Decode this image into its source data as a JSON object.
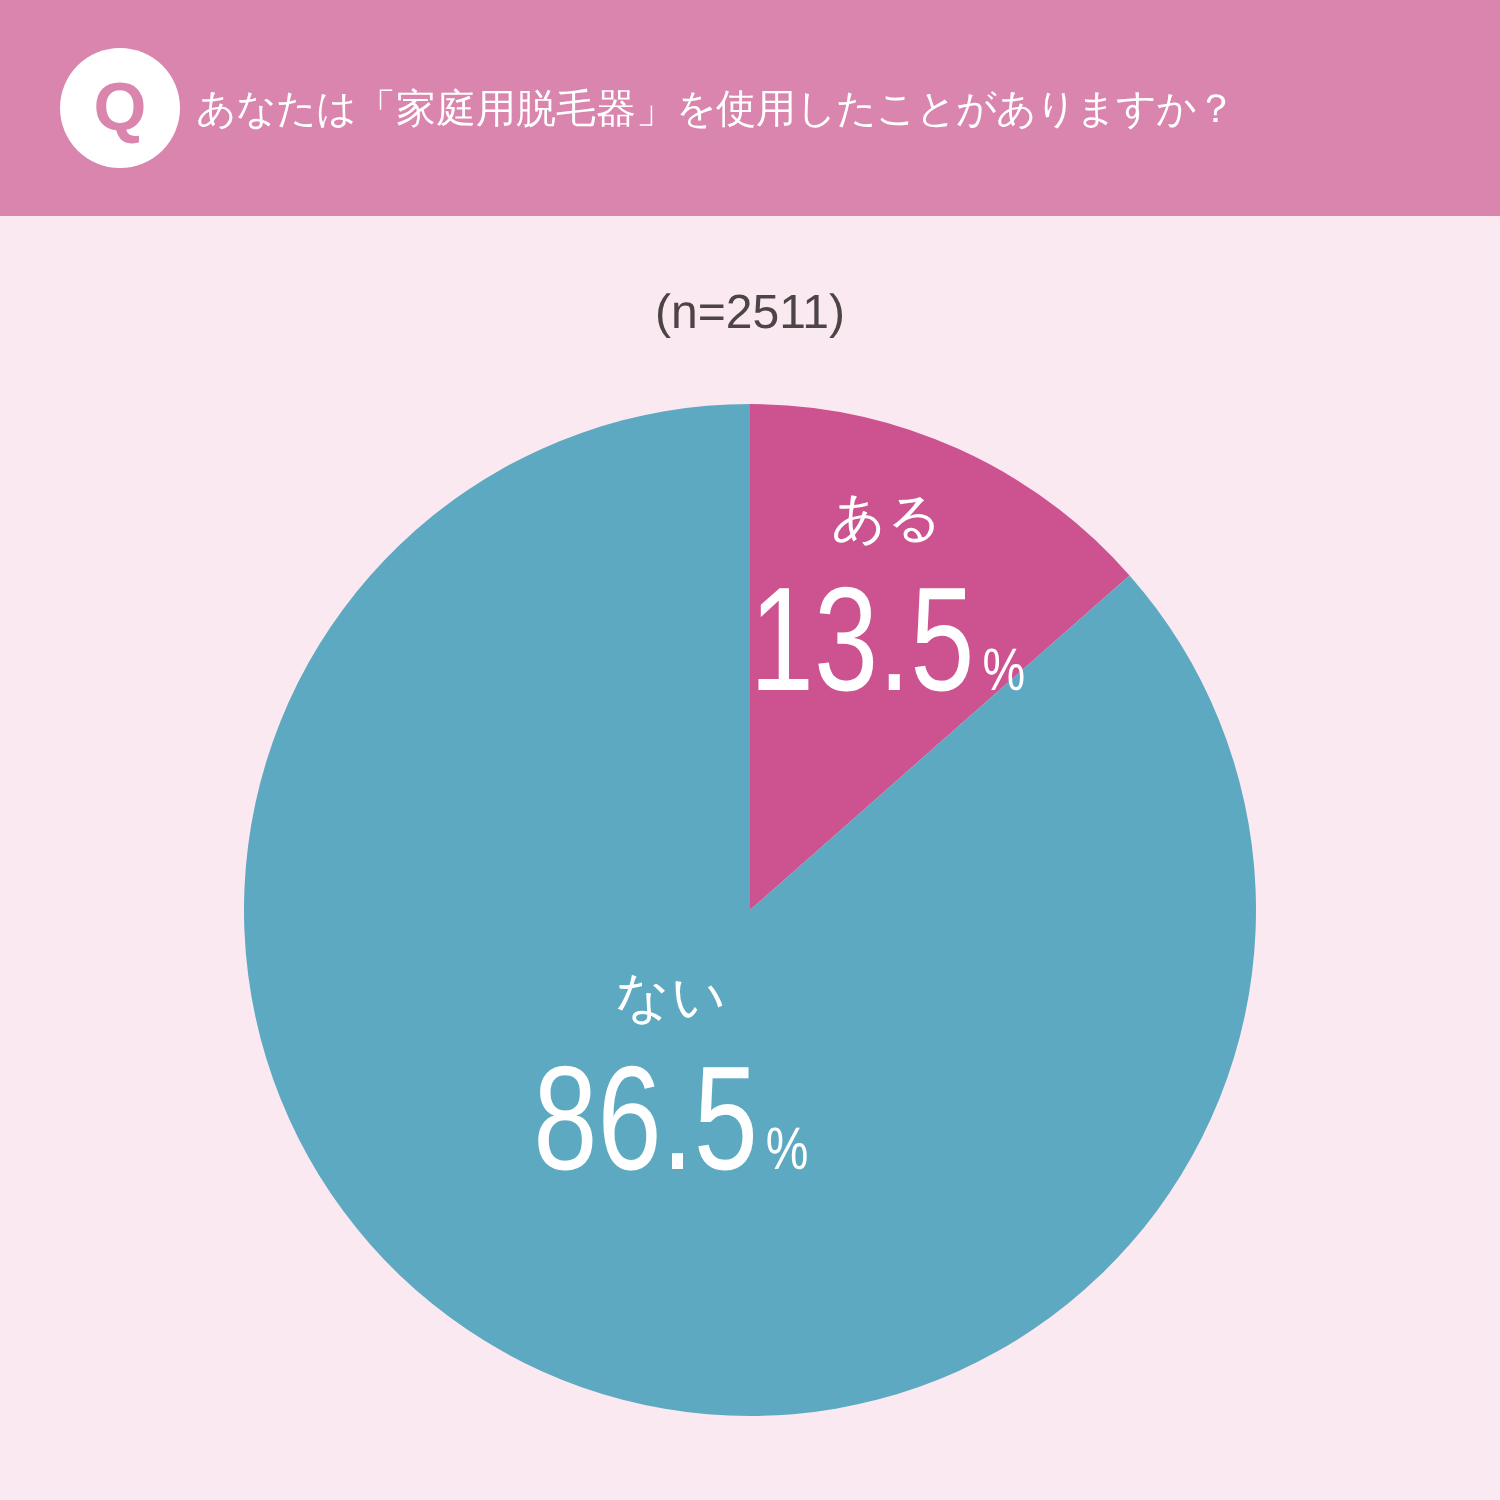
{
  "chart_data": {
    "type": "pie",
    "title": "あなたは「家庭用脱毛器」を使用したことがありますか？",
    "subtitle": "(n=2511)",
    "annotations": [
      "Q"
    ],
    "categories": [
      "ある",
      "ない"
    ],
    "values": [
      13.5,
      86.5
    ],
    "colors": [
      "#cc5290",
      "#5da9c1"
    ],
    "value_labels": [
      "13.5%",
      "86.5%"
    ],
    "legend": false
  }
}
